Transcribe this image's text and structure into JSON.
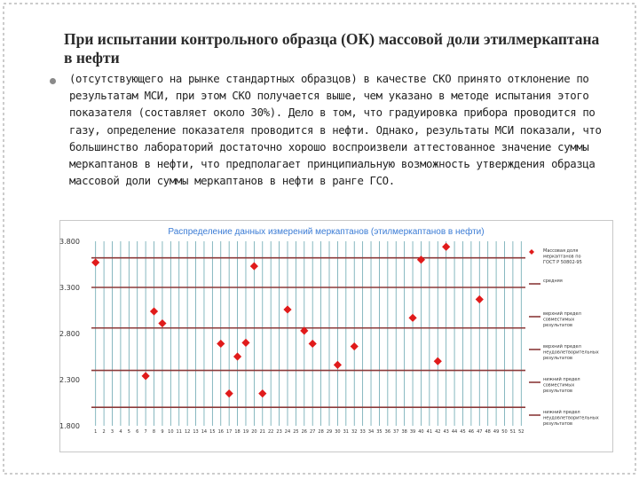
{
  "slide": {
    "title": "При испытании контрольного образца (ОК) массовой доли этилмеркаптана в нефти",
    "paragraph": "(отсутствующего на рынке стандартных образцов) в качестве СКО принято отклонение по результатам МСИ, при этом СКО получается выше, чем указано в методе испытания этого показателя (составляет около 30%). Дело в том, что градуировка прибора проводится по газу, определение показателя проводится в нефти. Однако, результаты МСИ показали, что большинство лабораторий достаточно хорошо воспроизвели аттестованное значение суммы меркаптанов в нефти, что предполагает принципиальную возможность утверждения образца массовой доли суммы меркаптанов в нефти в ранге ГСО."
  },
  "chart_data": {
    "type": "scatter",
    "title": "Распределение данных измерений меркаптанов (этилмеркаптанов в нефти)",
    "xlabel": "",
    "ylabel": "",
    "x_ticks": [
      "1",
      "2",
      "3",
      "4",
      "5",
      "6",
      "7",
      "8",
      "9",
      "10",
      "11",
      "12",
      "13",
      "14",
      "15",
      "16",
      "17",
      "18",
      "19",
      "20",
      "21",
      "22",
      "23",
      "24",
      "25",
      "26",
      "27",
      "28",
      "29",
      "30",
      "31",
      "32",
      "33",
      "34",
      "35",
      "36",
      "37",
      "38",
      "39",
      "40",
      "41",
      "42",
      "43",
      "44",
      "45",
      "46",
      "47",
      "48",
      "49",
      "50",
      "51",
      "52"
    ],
    "y_ticks": [
      1.8,
      2.3,
      2.8,
      3.3,
      3.8
    ],
    "y_tick_labels": [
      "1.800",
      "2.300",
      "2.800",
      "3.300",
      "3.800"
    ],
    "ylim": [
      1.8,
      3.8
    ],
    "xlim": [
      0.5,
      52.5
    ],
    "grid": "vertical",
    "legend_position": "right",
    "marker_color": "#e01b1b",
    "line_color": "#8b3a3a",
    "grid_color": "#6aa7b0",
    "points": [
      {
        "x": 1,
        "y": 3.57
      },
      {
        "x": 7,
        "y": 2.34
      },
      {
        "x": 8,
        "y": 3.04
      },
      {
        "x": 9,
        "y": 2.91
      },
      {
        "x": 16,
        "y": 2.69
      },
      {
        "x": 17,
        "y": 2.15
      },
      {
        "x": 18,
        "y": 2.55
      },
      {
        "x": 19,
        "y": 2.7
      },
      {
        "x": 20,
        "y": 3.53
      },
      {
        "x": 21,
        "y": 2.15
      },
      {
        "x": 24,
        "y": 3.06
      },
      {
        "x": 26,
        "y": 2.83
      },
      {
        "x": 27,
        "y": 2.69
      },
      {
        "x": 30,
        "y": 2.46
      },
      {
        "x": 32,
        "y": 2.66
      },
      {
        "x": 39,
        "y": 2.97
      },
      {
        "x": 40,
        "y": 3.6
      },
      {
        "x": 42,
        "y": 2.5
      },
      {
        "x": 43,
        "y": 3.74
      },
      {
        "x": 47,
        "y": 3.17
      }
    ],
    "reference_lines": [
      {
        "value": 3.62,
        "label": "средняя"
      },
      {
        "value": 3.3,
        "label": "верхний предел совместимых результатов"
      },
      {
        "value": 2.86,
        "label": "верхний предел неудовлетворительных результатов"
      },
      {
        "value": 2.4,
        "label": "нижний предел совместимых результатов"
      },
      {
        "value": 2.0,
        "label": "нижний предел неудовлетворительных результатов"
      }
    ],
    "marker_legend": "Массовая доля меркаптанов по ГОСТ Р 50802-95"
  }
}
